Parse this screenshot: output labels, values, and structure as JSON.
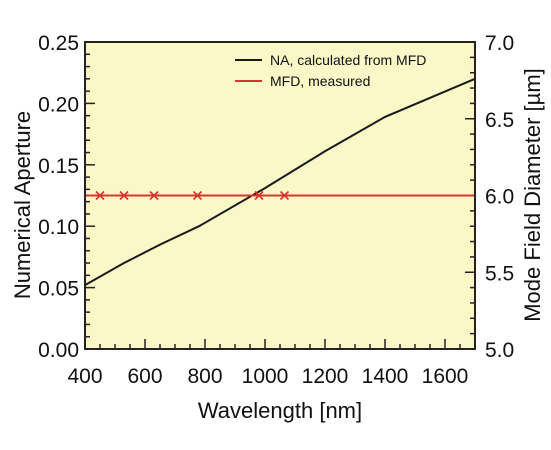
{
  "chart_data": {
    "type": "line",
    "title": "",
    "xlabel": "Wavelength [nm]",
    "ylabel": "Numerical Aperture",
    "y2label": "Mode Field Diameter [µm]",
    "xlim": [
      400,
      1700
    ],
    "ylim": [
      0.0,
      0.25
    ],
    "y2lim": [
      5.0,
      7.0
    ],
    "x_ticks": [
      "400",
      "600",
      "800",
      "1000",
      "1200",
      "1400",
      "1600"
    ],
    "x_tick_values": [
      400,
      600,
      800,
      1000,
      1200,
      1400,
      1600
    ],
    "y_ticks": [
      "0.00",
      "0.05",
      "0.10",
      "0.15",
      "0.20",
      "0.25"
    ],
    "y_tick_values": [
      0.0,
      0.05,
      0.1,
      0.15,
      0.2,
      0.25
    ],
    "y2_ticks": [
      "5.0",
      "5.5",
      "6.0",
      "6.5",
      "7.0"
    ],
    "y2_tick_values": [
      5.0,
      5.5,
      6.0,
      6.5,
      7.0
    ],
    "grid": false,
    "legend_position": "top-right",
    "series": [
      {
        "name": "NA, calculated from MFD",
        "axis": "left",
        "color": "#1a1a1a",
        "x": [
          400,
          530,
          650,
          780,
          1000,
          1200,
          1400,
          1700
        ],
        "y": [
          0.052,
          0.07,
          0.085,
          0.1,
          0.131,
          0.161,
          0.189,
          0.22
        ]
      },
      {
        "name": "MFD, measured",
        "axis": "right",
        "color": "#d9342b",
        "line_x": [
          400,
          1700
        ],
        "line_y": [
          6.0,
          6.0
        ],
        "marker": "x",
        "x": [
          450,
          530,
          630,
          775,
          980,
          1065
        ],
        "y": [
          6.0,
          6.0,
          6.0,
          6.0,
          6.0,
          6.0
        ]
      }
    ]
  },
  "colors": {
    "plot_background": "#fbf8c8",
    "frame": "#222222"
  }
}
